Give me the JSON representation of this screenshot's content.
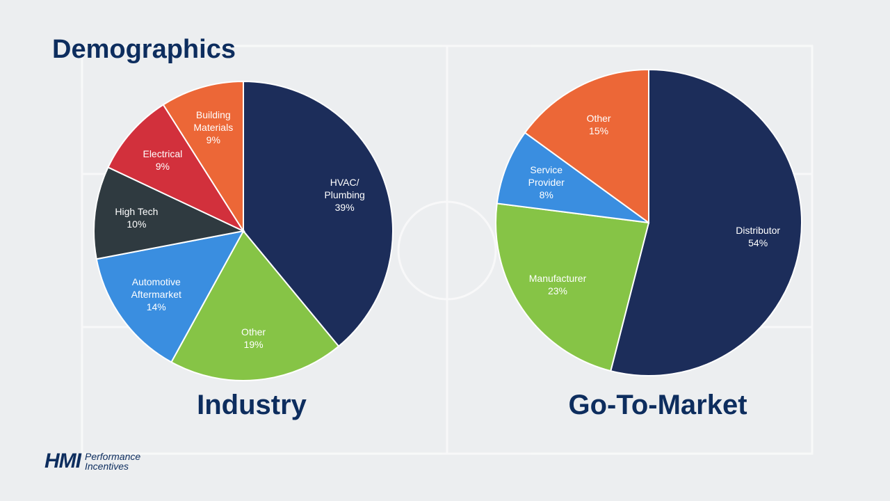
{
  "header": {
    "title": "Demographics"
  },
  "logo": {
    "mark": "HMI",
    "text": "Performance\nIncentives"
  },
  "chart_data": [
    {
      "type": "pie",
      "title": "Industry",
      "categories": [
        "HVAC/\nPlumbing",
        "Other",
        "Automotive\nAftermarket",
        "High Tech",
        "Electrical",
        "Building\nMaterials"
      ],
      "values": [
        39,
        19,
        14,
        10,
        9,
        9
      ],
      "value_labels": [
        "39%",
        "19%",
        "14%",
        "10%",
        "9%",
        "9%"
      ],
      "colors": [
        "#1c2d5a",
        "#86c446",
        "#3a8ee0",
        "#2f3a40",
        "#d2303c",
        "#ec6737"
      ]
    },
    {
      "type": "pie",
      "title": "Go-To-Market",
      "categories": [
        "Distributor",
        "Manufacturer",
        "Service\nProvider",
        "Other"
      ],
      "values": [
        54,
        23,
        8,
        15
      ],
      "value_labels": [
        "54%",
        "23%",
        "8%",
        "15%"
      ],
      "colors": [
        "#1c2d5a",
        "#86c446",
        "#3a8ee0",
        "#ec6737"
      ]
    }
  ]
}
